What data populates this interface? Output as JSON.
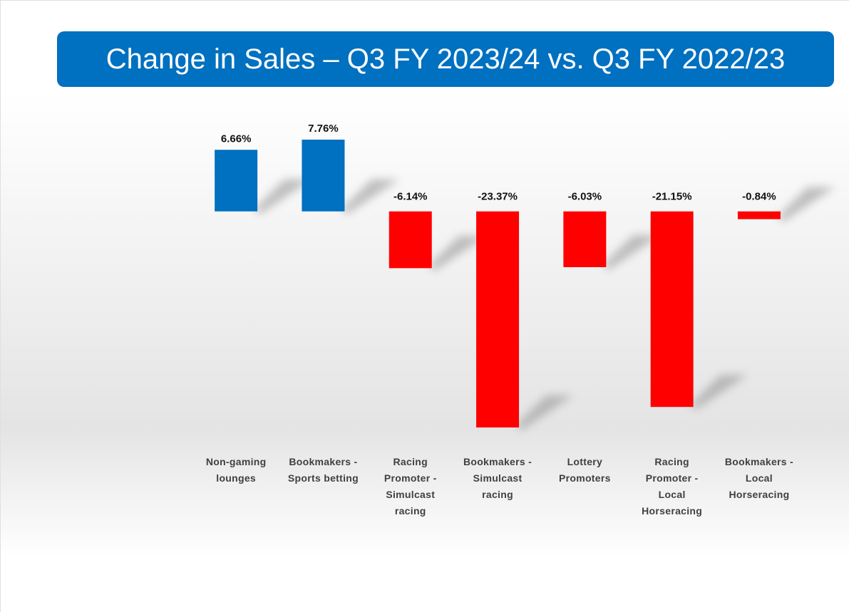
{
  "chart_data": {
    "type": "bar",
    "title": "Change in Sales – Q3 FY 2023/24 vs. Q3 FY 2022/23",
    "categories": [
      "Non-gaming lounges",
      "Bookmakers - Sports betting",
      "Racing Promoter - Simulcast racing",
      "Bookmakers - Simulcast racing",
      "Lottery Promoters",
      "Racing Promoter - Local Horseracing",
      "Bookmakers - Local Horseracing"
    ],
    "values": [
      6.66,
      7.76,
      -6.14,
      -23.37,
      -6.03,
      -21.15,
      -0.84
    ],
    "value_labels": [
      "6.66%",
      "7.76%",
      "-6.14%",
      "-23.37%",
      "-6.03%",
      "-21.15%",
      "-0.84%"
    ],
    "colors": [
      "#0070c0",
      "#0070c0",
      "#ff0000",
      "#ff0000",
      "#ff0000",
      "#ff0000",
      "#ff0000"
    ]
  }
}
